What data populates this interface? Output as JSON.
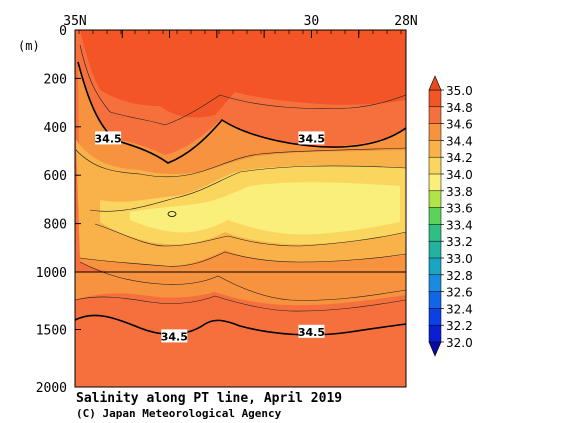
{
  "chart_data": {
    "type": "heatmap",
    "title": "Salinity along PT line, April 2019",
    "credit": "(C) Japan Meteorological Agency",
    "y_unit_label": "(m)",
    "x_ticks": [
      "35N",
      "30",
      "28N"
    ],
    "y_ticks_upper": [
      "0",
      "200",
      "400",
      "600",
      "800",
      "1000"
    ],
    "y_ticks_lower": [
      "1500",
      "2000"
    ],
    "x_range_deg": [
      35,
      28
    ],
    "y_range_m": [
      0,
      2000
    ],
    "grid": false,
    "contour_labels": [
      {
        "text": "34.5",
        "x": 34.3,
        "depth": 448
      },
      {
        "text": "34.5",
        "x": 30.0,
        "depth": 448
      },
      {
        "text": "34.5",
        "x": 32.9,
        "depth": 1560
      },
      {
        "text": "34.5",
        "x": 30.0,
        "depth": 1520
      }
    ],
    "colorbar": {
      "labels": [
        "35.0",
        "34.8",
        "34.6",
        "34.4",
        "34.2",
        "34.0",
        "33.8",
        "33.6",
        "33.4",
        "33.2",
        "33.0",
        "32.8",
        "32.6",
        "32.4",
        "32.2",
        "32.0"
      ],
      "colors": [
        "#f45526",
        "#f6703e",
        "#f7923f",
        "#f9b24a",
        "#fbd65f",
        "#f9ef7a",
        "#b2e34a",
        "#5cd25b",
        "#2fbe84",
        "#23b2a0",
        "#1aa6c0",
        "#1b8be1",
        "#1166e8",
        "#0c3fe6",
        "#0a1fd2"
      ],
      "range": [
        32.0,
        35.0
      ]
    },
    "depth_bands": [
      {
        "from_m": 0,
        "to_m": 150,
        "value": 34.8
      },
      {
        "from_m": 150,
        "to_m": 450,
        "value": 34.6
      },
      {
        "from_m": 450,
        "to_m": 620,
        "value": 34.4
      },
      {
        "from_m": 620,
        "to_m": 850,
        "value": 34.2
      },
      {
        "from_m": 850,
        "to_m": 1000,
        "value": 34.3
      },
      {
        "from_m": 1000,
        "to_m": 1250,
        "value": 34.4
      },
      {
        "from_m": 1250,
        "to_m": 2000,
        "value": 34.5
      }
    ]
  }
}
